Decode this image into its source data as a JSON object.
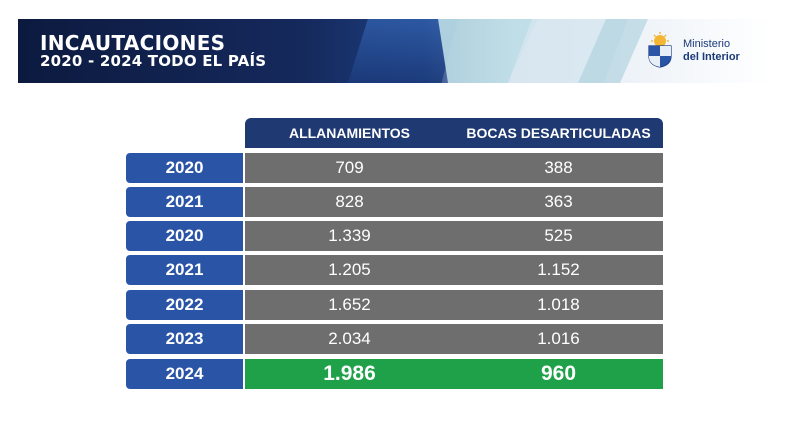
{
  "banner": {
    "title": "INCAUTACIONES",
    "subtitle": "2020 - 2024 TODO EL PAÍS",
    "logo_line1": "Ministerio",
    "logo_line2": "del Interior"
  },
  "table": {
    "headers": [
      "ALLANAMIENTOS",
      "BOCAS DESARTICULADAS"
    ],
    "rows": [
      {
        "year": "2020",
        "allanamientos": "709",
        "bocas": "388"
      },
      {
        "year": "2021",
        "allanamientos": "828",
        "bocas": "363"
      },
      {
        "year": "2020",
        "allanamientos": "1.339",
        "bocas": "525"
      },
      {
        "year": "2021",
        "allanamientos": "1.205",
        "bocas": "1.152"
      },
      {
        "year": "2022",
        "allanamientos": "1.652",
        "bocas": "1.018"
      },
      {
        "year": "2023",
        "allanamientos": "2.034",
        "bocas": "1.016"
      },
      {
        "year": "2024",
        "allanamientos": "1.986",
        "bocas": "960"
      }
    ]
  },
  "colors": {
    "banner_dark": "#0c1a3f",
    "header_navy": "#1f3a73",
    "year_blue": "#2a55a6",
    "row_gray": "#6e6e6e",
    "highlight_green": "#1fa14a"
  }
}
